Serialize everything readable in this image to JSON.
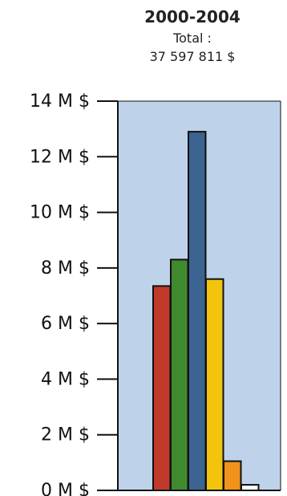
{
  "chart_data": {
    "type": "bar",
    "title": "2000-2004",
    "subtitle_lines": [
      "Total :",
      "37 597 811 $"
    ],
    "xlabel": "",
    "ylabel": "",
    "ylim": [
      0,
      14
    ],
    "y_unit_suffix": " M $",
    "yticks": [
      0,
      2,
      4,
      6,
      8,
      10,
      12,
      14
    ],
    "ytick_labels": [
      "0 M $",
      "2 M $",
      "4 M $",
      "6 M $",
      "8 M $",
      "10 M $",
      "12 M $",
      "14 M $"
    ],
    "categories": [
      "",
      "",
      "",
      "",
      "",
      ""
    ],
    "values": [
      7.35,
      8.3,
      12.9,
      7.6,
      1.05,
      0.2
    ],
    "grid": false,
    "colors": {
      "plot_background": "#bed3ea",
      "bars": [
        "#c0392b",
        "#3f8a2e",
        "#3b6491",
        "#f2c40d",
        "#f0921c",
        "#ffffff"
      ],
      "bar_outline": "#111111",
      "axis": "#111111",
      "text": "#222222"
    }
  }
}
